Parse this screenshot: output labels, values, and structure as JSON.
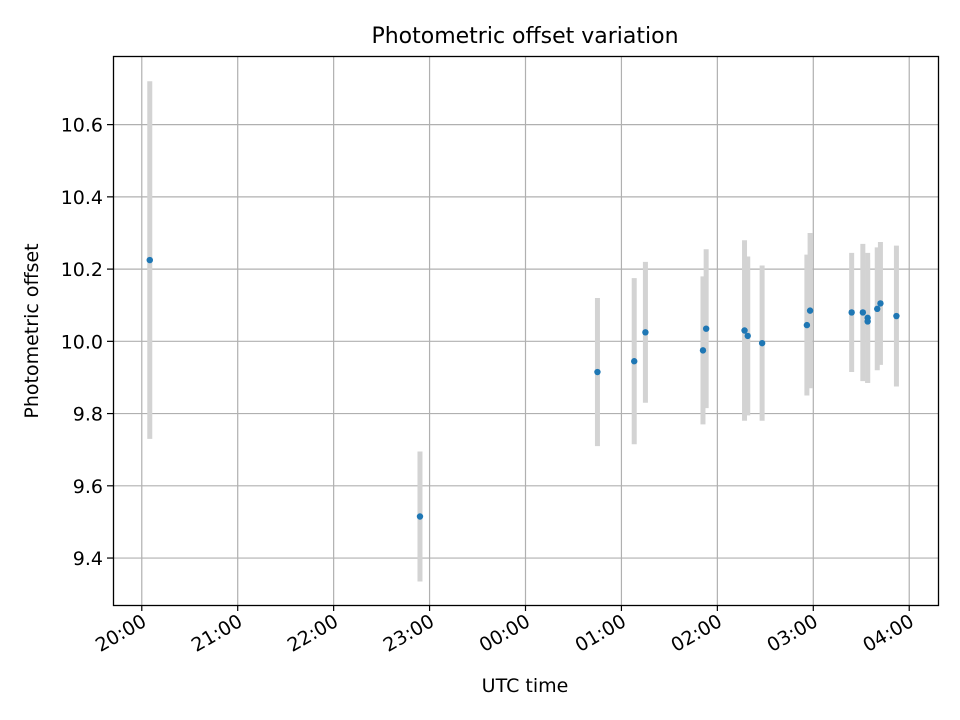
{
  "chart_data": {
    "type": "scatter",
    "title": "Photometric offset variation",
    "xlabel": "UTC time",
    "ylabel": "Photometric offset",
    "x_unit": "UTC time (hours, wrapping past midnight)",
    "xlim": [
      "19:42",
      "04:18"
    ],
    "ylim": [
      9.27,
      10.79
    ],
    "x_ticks": [
      "20:00",
      "21:00",
      "22:00",
      "23:00",
      "00:00",
      "01:00",
      "02:00",
      "03:00",
      "04:00"
    ],
    "y_ticks": [
      "9.4",
      "9.6",
      "9.8",
      "10.0",
      "10.2",
      "10.4",
      "10.6"
    ],
    "grid": true,
    "marker_color": "#1f77b4",
    "errorbar_color": "#d3d3d3",
    "points": [
      {
        "x": "20:05",
        "y": 10.225,
        "err": 0.495
      },
      {
        "x": "22:54",
        "y": 9.515,
        "err": 0.18
      },
      {
        "x": "00:45",
        "y": 9.915,
        "err": 0.205
      },
      {
        "x": "01:08",
        "y": 9.945,
        "err": 0.23
      },
      {
        "x": "01:15",
        "y": 10.025,
        "err": 0.195
      },
      {
        "x": "01:51",
        "y": 9.975,
        "err": 0.205
      },
      {
        "x": "01:53",
        "y": 10.035,
        "err": 0.22
      },
      {
        "x": "02:17",
        "y": 10.03,
        "err": 0.25
      },
      {
        "x": "02:19",
        "y": 10.015,
        "err": 0.22
      },
      {
        "x": "02:28",
        "y": 9.995,
        "err": 0.215
      },
      {
        "x": "02:56",
        "y": 10.045,
        "err": 0.195
      },
      {
        "x": "02:58",
        "y": 10.085,
        "err": 0.215
      },
      {
        "x": "03:24",
        "y": 10.08,
        "err": 0.165
      },
      {
        "x": "03:31",
        "y": 10.08,
        "err": 0.19
      },
      {
        "x": "03:34",
        "y": 10.065,
        "err": 0.18
      },
      {
        "x": "03:34",
        "y": 10.055,
        "err": 0.17
      },
      {
        "x": "03:40",
        "y": 10.09,
        "err": 0.17
      },
      {
        "x": "03:42",
        "y": 10.105,
        "err": 0.17
      },
      {
        "x": "03:52",
        "y": 10.07,
        "err": 0.195
      }
    ]
  }
}
